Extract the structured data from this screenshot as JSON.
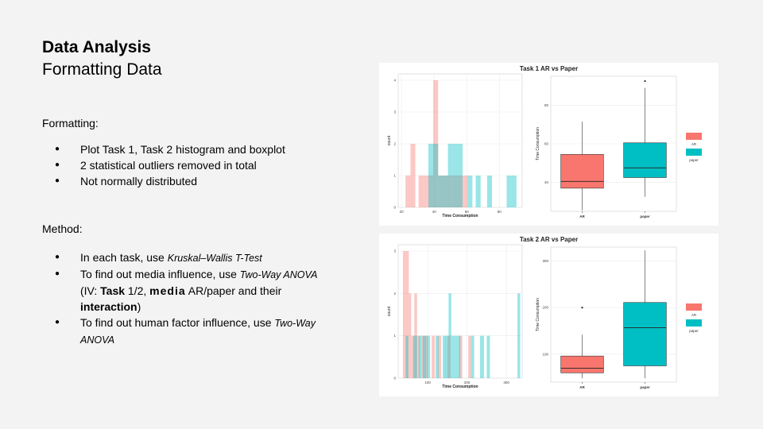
{
  "slide": {
    "title": "Data Analysis",
    "subtitle": "Formatting Data",
    "formatting_label": "Formatting:",
    "formatting_items": [
      "Plot Task 1, Task 2 histogram and boxplot",
      "2 statistical outliers removed in total",
      "Not normally distributed"
    ],
    "method_label": "Method:",
    "method": {
      "item1_pre": "In each task, use ",
      "item1_test": "Kruskal–Wallis T-Test",
      "item2_pre": "To find out media influence,  use ",
      "item2_test": "Two-Way ANOVA",
      "item2_iv": "(IV: ",
      "item2_task": "Task",
      "item2_task_rest": " 1/2, ",
      "item2_media": "media",
      "item2_media_rest": " AR/paper  and their ",
      "item2_interaction": "interaction",
      "item2_close": ")",
      "item3_pre": "To find out human factor influence, use ",
      "item3_test1": "Two-Way",
      "item3_test2": "ANOVA"
    }
  },
  "colors": {
    "ar": "#f8766d",
    "paper": "#00bfc4",
    "grid": "#ebebeb"
  },
  "chart_data": [
    {
      "type": "histogram+boxplot",
      "title": "Task 1 AR vs Paper",
      "histogram": {
        "xlabel": "Time Consumption",
        "ylabel": "count",
        "xlim": [
          18,
          94
        ],
        "ylim": [
          0,
          4
        ],
        "xticks": [
          20,
          40,
          60,
          80
        ],
        "yticks": [
          0,
          1,
          2,
          3,
          4
        ],
        "series": [
          {
            "name": "AR",
            "bins": [
              [
                22.5,
                25.5,
                1
              ],
              [
                25.5,
                28.5,
                2
              ],
              [
                30.5,
                33.5,
                1
              ],
              [
                33.5,
                36.5,
                1
              ],
              [
                36.5,
                39.5,
                1
              ],
              [
                39.5,
                42.5,
                4
              ],
              [
                42.5,
                45.5,
                1
              ],
              [
                45.5,
                48.5,
                1
              ],
              [
                48.5,
                51.5,
                1
              ],
              [
                51.5,
                54.5,
                1
              ],
              [
                54.5,
                57.5,
                1
              ],
              [
                57.5,
                60.5,
                1
              ]
            ]
          },
          {
            "name": "paper",
            "bins": [
              [
                36.5,
                39.5,
                2
              ],
              [
                39.5,
                42.5,
                2
              ],
              [
                42.5,
                45.5,
                1
              ],
              [
                45.5,
                48.5,
                1
              ],
              [
                48.5,
                51.5,
                2
              ],
              [
                51.5,
                54.5,
                2
              ],
              [
                54.5,
                57.5,
                2
              ],
              [
                60.5,
                63.5,
                1
              ],
              [
                65.5,
                68.5,
                1
              ],
              [
                72.5,
                75.5,
                1
              ],
              [
                84.5,
                87.5,
                1
              ],
              [
                87.5,
                90.5,
                1
              ]
            ]
          }
        ]
      },
      "boxplot": {
        "xlabel": "",
        "ylabel": "Time Consumption",
        "ylim": [
          25,
          95
        ],
        "yticks": [
          40,
          60,
          80
        ],
        "categories": [
          "AR",
          "paper"
        ],
        "boxes": [
          {
            "name": "AR",
            "min": 25.5,
            "q1": 37,
            "median": 40.5,
            "q3": 54.5,
            "max": 71.5,
            "outliers": []
          },
          {
            "name": "paper",
            "min": 32.5,
            "q1": 42.5,
            "median": 47.5,
            "q3": 60.5,
            "max": 89,
            "outliers": [
              92.5
            ]
          }
        ],
        "legend": [
          "AR",
          "paper"
        ]
      }
    },
    {
      "type": "histogram+boxplot",
      "title": "Task 2 AR vs Paper",
      "histogram": {
        "xlabel": "Time Consumption",
        "ylabel": "count",
        "xlim": [
          25,
          340
        ],
        "ylim": [
          0,
          3
        ],
        "xticks": [
          100,
          200,
          300
        ],
        "yticks": [
          0,
          1,
          2,
          3
        ],
        "series": [
          {
            "name": "AR",
            "bins": [
              [
                37,
                45,
                3
              ],
              [
                45,
                52,
                3
              ],
              [
                52,
                58,
                2
              ],
              [
                58,
                66,
                1
              ],
              [
                66,
                73,
                2
              ],
              [
                73,
                80,
                1
              ],
              [
                85,
                93,
                1
              ],
              [
                93,
                100,
                1
              ],
              [
                110,
                118,
                1
              ],
              [
                126,
                134,
                1
              ],
              [
                150,
                158,
                1
              ],
              [
                180,
                188,
                1
              ],
              [
                203,
                210,
                1
              ]
            ]
          },
          {
            "name": "paper",
            "bins": [
              [
                44,
                51,
                1
              ],
              [
                63,
                73,
                1
              ],
              [
                77,
                85,
                1
              ],
              [
                87,
                96,
                1
              ],
              [
                97,
                106,
                1
              ],
              [
                120,
                128,
                1
              ],
              [
                138,
                146,
                1
              ],
              [
                145,
                153,
                1
              ],
              [
                153,
                160,
                2
              ],
              [
                160,
                168,
                1
              ],
              [
                168,
                176,
                1
              ],
              [
                176,
                183,
                1
              ],
              [
                210,
                218,
                1
              ],
              [
                233,
                243,
                1
              ],
              [
                250,
                258,
                1
              ],
              [
                328,
                335,
                2
              ]
            ]
          }
        ]
      },
      "boxplot": {
        "xlabel": "",
        "ylabel": "Time Consumption",
        "ylim": [
          40,
          330
        ],
        "yticks": [
          100,
          200,
          300
        ],
        "categories": [
          "AR",
          "paper"
        ],
        "boxes": [
          {
            "name": "AR",
            "min": 48,
            "q1": 60,
            "median": 70,
            "q3": 96,
            "max": 142,
            "outliers": [
              200
            ]
          },
          {
            "name": "paper",
            "min": 48,
            "q1": 75,
            "median": 157,
            "q3": 211,
            "max": 323,
            "outliers": []
          }
        ],
        "legend": [
          "AR",
          "paper"
        ]
      }
    }
  ]
}
